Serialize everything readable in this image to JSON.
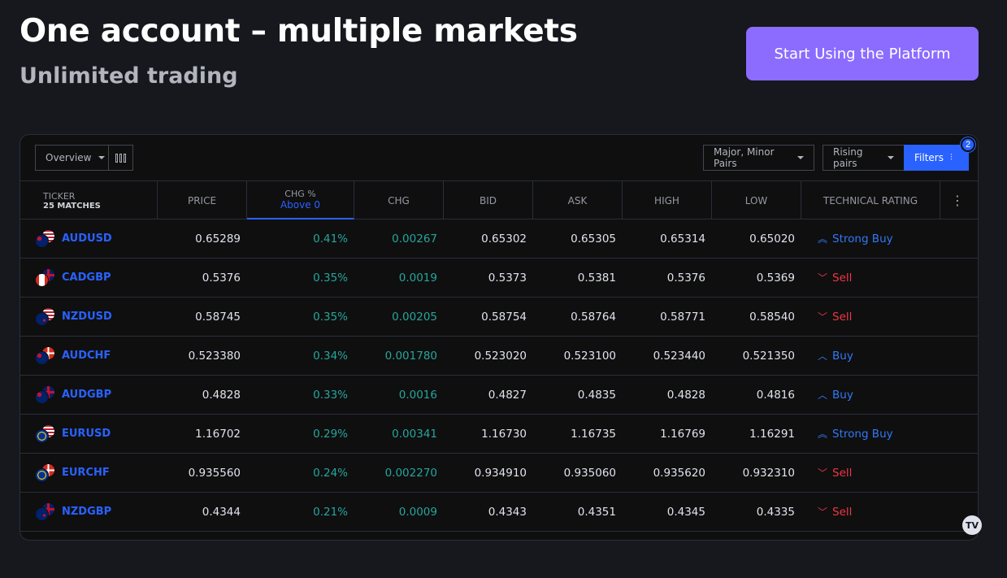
{
  "hero": {
    "title": "One account – multiple markets",
    "subtitle": "Unlimited trading",
    "cta_label": "Start Using the Platform"
  },
  "toolbar": {
    "view_label": "Overview",
    "columns_icon": "columns-icon",
    "pairs_label": "Major, Minor Pairs",
    "sort_label": "Rising pairs",
    "filters_label": "Filters",
    "filters_count": "2"
  },
  "table": {
    "headers": {
      "ticker": "TICKER",
      "matches": "25 MATCHES",
      "price": "PRICE",
      "chg_pct": "CHG %",
      "chg_pct_filter": "Above 0",
      "chg": "CHG",
      "bid": "BID",
      "ask": "ASK",
      "high": "HIGH",
      "low": "LOW",
      "rating": "TECHNICAL RATING",
      "more": "⋮"
    },
    "rows": [
      {
        "symbol": "AUDUSD",
        "flag_a": "au",
        "flag_b": "us",
        "price": "0.65289",
        "chg_pct": "0.41%",
        "chg": "0.00267",
        "bid": "0.65302",
        "ask": "0.65305",
        "high": "0.65314",
        "low": "0.65020",
        "rating": "Strong Buy",
        "rating_type": "buy",
        "rating_arrow": "︽"
      },
      {
        "symbol": "CADGBP",
        "flag_a": "ca",
        "flag_b": "gb",
        "price": "0.5376",
        "chg_pct": "0.35%",
        "chg": "0.0019",
        "bid": "0.5373",
        "ask": "0.5381",
        "high": "0.5376",
        "low": "0.5369",
        "rating": "Sell",
        "rating_type": "sell",
        "rating_arrow": "﹀"
      },
      {
        "symbol": "NZDUSD",
        "flag_a": "nz",
        "flag_b": "us",
        "price": "0.58745",
        "chg_pct": "0.35%",
        "chg": "0.00205",
        "bid": "0.58754",
        "ask": "0.58764",
        "high": "0.58771",
        "low": "0.58540",
        "rating": "Sell",
        "rating_type": "sell",
        "rating_arrow": "﹀"
      },
      {
        "symbol": "AUDCHF",
        "flag_a": "au",
        "flag_b": "ch",
        "price": "0.523380",
        "chg_pct": "0.34%",
        "chg": "0.001780",
        "bid": "0.523020",
        "ask": "0.523100",
        "high": "0.523440",
        "low": "0.521350",
        "rating": "Buy",
        "rating_type": "buy",
        "rating_arrow": "︿"
      },
      {
        "symbol": "AUDGBP",
        "flag_a": "au",
        "flag_b": "gb",
        "price": "0.4828",
        "chg_pct": "0.33%",
        "chg": "0.0016",
        "bid": "0.4827",
        "ask": "0.4835",
        "high": "0.4828",
        "low": "0.4816",
        "rating": "Buy",
        "rating_type": "buy",
        "rating_arrow": "︿"
      },
      {
        "symbol": "EURUSD",
        "flag_a": "eu",
        "flag_b": "us",
        "price": "1.16702",
        "chg_pct": "0.29%",
        "chg": "0.00341",
        "bid": "1.16730",
        "ask": "1.16735",
        "high": "1.16769",
        "low": "1.16291",
        "rating": "Strong Buy",
        "rating_type": "buy",
        "rating_arrow": "︽"
      },
      {
        "symbol": "EURCHF",
        "flag_a": "eu",
        "flag_b": "ch",
        "price": "0.935560",
        "chg_pct": "0.24%",
        "chg": "0.002270",
        "bid": "0.934910",
        "ask": "0.935060",
        "high": "0.935620",
        "low": "0.932310",
        "rating": "Sell",
        "rating_type": "sell",
        "rating_arrow": "﹀"
      },
      {
        "symbol": "NZDGBP",
        "flag_a": "nz",
        "flag_b": "gb",
        "price": "0.4344",
        "chg_pct": "0.21%",
        "chg": "0.0009",
        "bid": "0.4343",
        "ask": "0.4351",
        "high": "0.4345",
        "low": "0.4335",
        "rating": "Sell",
        "rating_type": "sell",
        "rating_arrow": "﹀"
      }
    ]
  },
  "colors": {
    "accent": "#2962ff",
    "cta": "#8b6cff",
    "positive": "#26a69a",
    "sell": "#f23645",
    "buy": "#3179f5"
  },
  "footer_logo": "TV"
}
